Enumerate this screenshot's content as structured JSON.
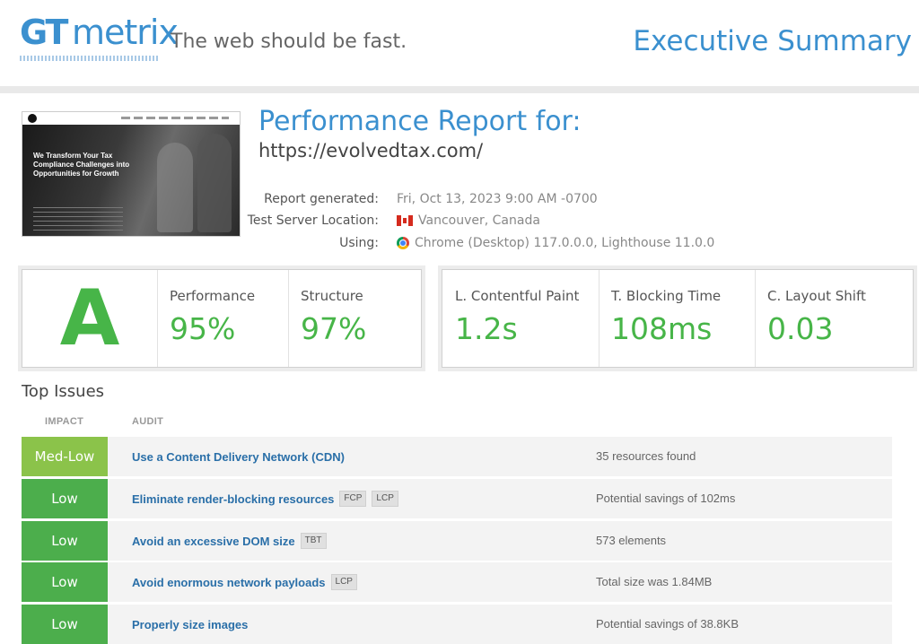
{
  "header": {
    "logo_gt": "GT",
    "logo_metrix": "metrix",
    "tagline": "The web should be fast.",
    "page_title": "Executive Summary"
  },
  "thumbnail": {
    "hero_text": "We Transform Your Tax Compliance Challenges into Opportunities for Growth"
  },
  "report": {
    "title": "Performance Report for:",
    "url": "https://evolvedtax.com/",
    "meta": [
      {
        "label": "Report generated:",
        "value": "Fri, Oct 13, 2023 9:00 AM -0700"
      },
      {
        "label": "Test Server Location:",
        "value": "Vancouver, Canada",
        "icon": "canada-flag-icon"
      },
      {
        "label": "Using:",
        "value": "Chrome (Desktop) 117.0.0.0, Lighthouse 11.0.0",
        "icon": "chrome-icon"
      }
    ]
  },
  "scores": {
    "grade": "A",
    "performance_label": "Performance",
    "performance_value": "95%",
    "structure_label": "Structure",
    "structure_value": "97%"
  },
  "web_vitals": {
    "lcp_label": "L. Contentful Paint",
    "lcp_value": "1.2s",
    "tbt_label": "T. Blocking Time",
    "tbt_value": "108ms",
    "cls_label": "C. Layout Shift",
    "cls_value": "0.03"
  },
  "issues": {
    "title": "Top Issues",
    "col_impact": "IMPACT",
    "col_audit": "AUDIT",
    "rows": [
      {
        "impact": "Med-Low",
        "audit": "Use a Content Delivery Network (CDN)",
        "tags": [],
        "result": "35 resources found"
      },
      {
        "impact": "Low",
        "audit": "Eliminate render-blocking resources",
        "tags": [
          "FCP",
          "LCP"
        ],
        "result": "Potential savings of 102ms"
      },
      {
        "impact": "Low",
        "audit": "Avoid an excessive DOM size",
        "tags": [
          "TBT"
        ],
        "result": "573 elements"
      },
      {
        "impact": "Low",
        "audit": "Avoid enormous network payloads",
        "tags": [
          "LCP"
        ],
        "result": "Total size was 1.84MB"
      },
      {
        "impact": "Low",
        "audit": "Properly size images",
        "tags": [],
        "result": "Potential savings of 38.8KB"
      }
    ]
  },
  "colors": {
    "brand_blue": "#3b90cf",
    "grade_green": "#47b548",
    "impact_medlow": "#8bc34a",
    "impact_low": "#4cae4c",
    "link_blue": "#2a6fa8"
  }
}
